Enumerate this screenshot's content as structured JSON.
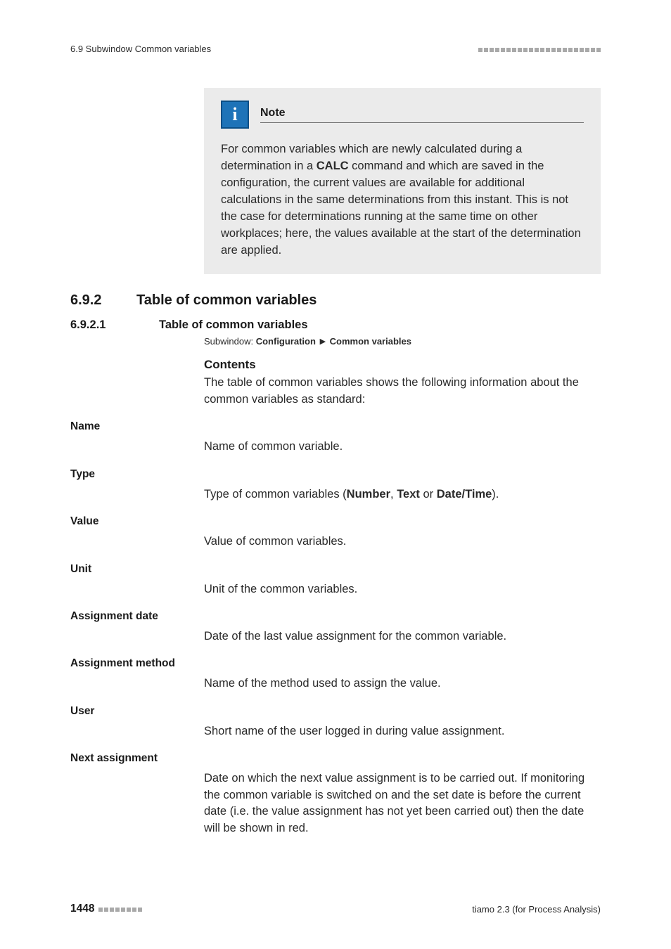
{
  "header": {
    "section_ref": "6.9 Subwindow Common variables",
    "barcount": 22
  },
  "note": {
    "title": "Note",
    "body_pre": "For common variables which are newly calculated during a determination in a ",
    "calc_word": "CALC",
    "body_post": " command and which are saved in the configuration, the current values are available for additional calculations in the same determinations from this instant. This is not the case for determinations running at the same time on other workplaces; here, the values available at the start of the determination are applied."
  },
  "section": {
    "num": "6.9.2",
    "title": "Table of common variables"
  },
  "subsection": {
    "num": "6.9.2.1",
    "title": "Table of common variables"
  },
  "subwindow": {
    "label": "Subwindow: ",
    "path_a": "Configuration",
    "path_b": "Common variables"
  },
  "contents": {
    "heading": "Contents",
    "text": "The table of common variables shows the following information about the common variables as standard:"
  },
  "fields": [
    {
      "label": "Name",
      "desc": "Name of common variable."
    },
    {
      "label": "Type",
      "desc_pre": "Type of common variables (",
      "b1": "Number",
      "sep1": ", ",
      "b2": "Text",
      "sep2": " or ",
      "b3": "Date/Time",
      "desc_post": ")."
    },
    {
      "label": "Value",
      "desc": "Value of common variables."
    },
    {
      "label": "Unit",
      "desc": "Unit of the common variables."
    },
    {
      "label": "Assignment date",
      "desc": "Date of the last value assignment for the common variable."
    },
    {
      "label": "Assignment method",
      "desc": "Name of the method used to assign the value."
    },
    {
      "label": "User",
      "desc": "Short name of the user logged in during value assignment."
    },
    {
      "label": "Next assignment",
      "desc": "Date on which the next value assignment is to be carried out. If monitoring the common variable is switched on and the set date is before the current date (i.e. the value assignment has not yet been carried out) then the date will be shown in red."
    }
  ],
  "footer": {
    "page": "1448",
    "barcount": 8,
    "product": "tiamo 2.3 (for Process Analysis)"
  }
}
